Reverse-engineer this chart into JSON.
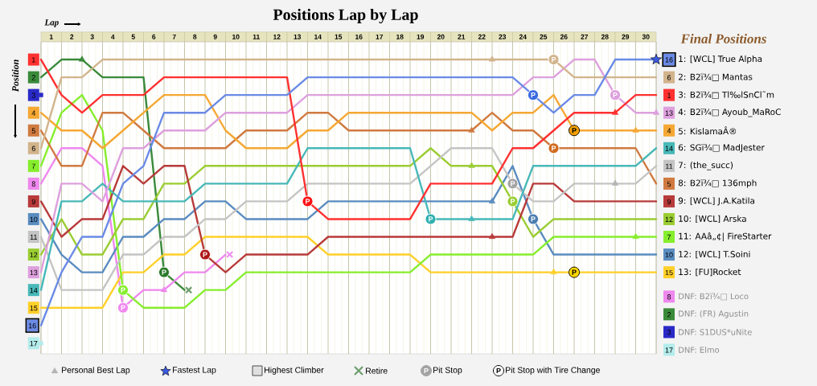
{
  "chart_data": {
    "type": "line",
    "title": "Positions Lap by Lap",
    "xlabel": "Lap",
    "ylabel": "Position",
    "legend_title": "Final Positions",
    "x": [
      0,
      1,
      2,
      3,
      4,
      5,
      6,
      7,
      8,
      9,
      10,
      11,
      12,
      13,
      14,
      15,
      16,
      17,
      18,
      19,
      20,
      21,
      22,
      23,
      24,
      25,
      26,
      27,
      28,
      29,
      30
    ],
    "xlim": [
      0,
      30
    ],
    "ylim": [
      17.6,
      0
    ],
    "xticks": [
      {
        "value": 0,
        "label": null
      },
      {
        "value": 0.5,
        "label": "1"
      },
      {
        "value": 1,
        "label": null
      },
      {
        "value": 1.5,
        "label": "2"
      },
      {
        "value": 2,
        "label": null
      },
      {
        "value": 2.5,
        "label": "3"
      },
      {
        "value": 3,
        "label": null
      },
      {
        "value": 3.5,
        "label": "4"
      },
      {
        "value": 4,
        "label": null
      },
      {
        "value": 4.5,
        "label": "5"
      },
      {
        "value": 5,
        "label": null
      },
      {
        "value": 5.5,
        "label": "6"
      },
      {
        "value": 6,
        "label": null
      },
      {
        "value": 6.5,
        "label": "7"
      },
      {
        "value": 7,
        "label": null
      },
      {
        "value": 7.5,
        "label": "8"
      },
      {
        "value": 8,
        "label": null
      },
      {
        "value": 8.5,
        "label": "9"
      },
      {
        "value": 9,
        "label": null
      },
      {
        "value": 9.5,
        "label": "10"
      },
      {
        "value": 10,
        "label": null
      },
      {
        "value": 10.5,
        "label": "11"
      },
      {
        "value": 11,
        "label": null
      },
      {
        "value": 11.5,
        "label": "12"
      },
      {
        "value": 12,
        "label": null
      },
      {
        "value": 12.5,
        "label": "13"
      },
      {
        "value": 13,
        "label": null
      },
      {
        "value": 13.5,
        "label": "14"
      },
      {
        "value": 14,
        "label": null
      },
      {
        "value": 14.5,
        "label": "15"
      },
      {
        "value": 15,
        "label": null
      },
      {
        "value": 15.5,
        "label": "16"
      },
      {
        "value": 16,
        "label": null
      },
      {
        "value": 16.5,
        "label": "17"
      },
      {
        "value": 17,
        "label": null
      },
      {
        "value": 17.5,
        "label": "18"
      },
      {
        "value": 18,
        "label": null
      },
      {
        "value": 18.5,
        "label": "19"
      },
      {
        "value": 19,
        "label": null
      },
      {
        "value": 19.5,
        "label": "20"
      },
      {
        "value": 20,
        "label": null
      },
      {
        "value": 20.5,
        "label": "21"
      },
      {
        "value": 21,
        "label": null
      },
      {
        "value": 21.5,
        "label": "22"
      },
      {
        "value": 22,
        "label": null
      },
      {
        "value": 22.5,
        "label": "23"
      },
      {
        "value": 23,
        "label": null
      },
      {
        "value": 23.5,
        "label": "24"
      },
      {
        "value": 24,
        "label": null
      },
      {
        "value": 24.5,
        "label": "25"
      },
      {
        "value": 25,
        "label": null
      },
      {
        "value": 25.5,
        "label": "26"
      },
      {
        "value": 26,
        "label": null
      },
      {
        "value": 26.5,
        "label": "27"
      },
      {
        "value": 27,
        "label": null
      },
      {
        "value": 27.5,
        "label": "28"
      },
      {
        "value": 28,
        "label": null
      },
      {
        "value": 28.5,
        "label": "29"
      },
      {
        "value": 29,
        "label": null
      },
      {
        "value": 29.5,
        "label": "30"
      },
      {
        "value": 30,
        "label": null
      }
    ],
    "yticks": [
      1,
      2,
      3,
      4,
      5,
      6,
      7,
      8,
      9,
      10,
      11,
      12,
      13,
      14,
      15,
      16,
      17
    ],
    "annotations": [
      "Highest Climber",
      "16",
      "6",
      "1",
      "13",
      "4",
      "14",
      "11",
      "5",
      "9",
      "12",
      "7",
      "10",
      "15",
      "8",
      "2",
      "3",
      "17"
    ],
    "grid": "x",
    "legend": "right",
    "marker": "none",
    "line_style": "solid",
    "series": [
      {
        "name": "1: [WCL] True Alpha",
        "color": "#6a8ae6",
        "values": [
          16,
          13,
          11,
          11,
          8,
          7,
          4,
          4,
          4,
          3,
          3,
          3,
          3,
          2,
          2,
          2,
          2,
          2,
          2,
          2,
          2,
          2,
          2,
          2,
          3,
          4,
          3,
          3,
          1,
          1,
          1
        ]
      },
      {
        "name": "2: B2ï¾□ Mantas",
        "color": "#d2b48c",
        "values": [
          6,
          2,
          2,
          1,
          1,
          1,
          1,
          1,
          1,
          1,
          1,
          1,
          1,
          1,
          1,
          1,
          1,
          1,
          1,
          1,
          1,
          1,
          1,
          1,
          1,
          1,
          2,
          2,
          2,
          2,
          2
        ]
      },
      {
        "name": "3: B2ï¾□ Tl‰lSnCl˜m",
        "color": "#ff3030",
        "values": [
          1,
          3,
          4,
          3,
          3,
          3,
          2,
          2,
          2,
          2,
          2,
          2,
          2,
          9,
          10,
          10,
          10,
          10,
          10,
          8,
          8,
          8,
          8,
          6,
          6,
          5,
          4,
          4,
          4,
          3,
          3
        ]
      },
      {
        "name": "4: B2ï¾□ Ayoub_MaRoC",
        "color": "#dda0dd",
        "values": [
          13,
          8,
          8,
          9,
          6,
          6,
          5,
          5,
          5,
          4,
          4,
          4,
          4,
          3,
          3,
          3,
          3,
          3,
          3,
          3,
          3,
          3,
          3,
          3,
          2,
          2,
          1,
          1,
          3,
          4,
          4
        ]
      },
      {
        "name": "5: KislamaÂ®",
        "color": "#f5a833",
        "values": [
          4,
          5,
          5,
          6,
          5,
          4,
          3,
          3,
          3,
          5,
          6,
          6,
          6,
          5,
          5,
          4,
          4,
          4,
          4,
          4,
          4,
          4,
          5,
          4,
          4,
          3,
          5,
          5,
          5,
          5,
          5
        ]
      },
      {
        "name": "6: SGï¾□ MadJester",
        "color": "#48b8b8",
        "values": [
          14,
          9,
          9,
          8,
          9,
          9,
          9,
          9,
          8,
          8,
          8,
          8,
          8,
          6,
          6,
          6,
          6,
          6,
          6,
          10,
          10,
          10,
          10,
          10,
          7,
          7,
          7,
          7,
          7,
          7,
          6
        ]
      },
      {
        "name": "7: (the_succ)",
        "color": "#c4c4c4",
        "values": [
          11,
          14,
          14,
          14,
          12,
          12,
          11,
          11,
          10,
          10,
          9,
          9,
          9,
          8,
          8,
          8,
          8,
          8,
          8,
          7,
          6,
          6,
          6,
          8,
          9,
          9,
          8,
          8,
          8,
          8,
          7
        ]
      },
      {
        "name": "8: B2ï¾□ 136mph",
        "color": "#d07a40",
        "values": [
          5,
          7,
          7,
          4,
          4,
          5,
          6,
          6,
          6,
          6,
          5,
          5,
          5,
          4,
          4,
          5,
          5,
          5,
          5,
          5,
          5,
          5,
          4,
          5,
          5,
          6,
          6,
          6,
          6,
          6,
          8
        ]
      },
      {
        "name": "9: [WCL] J.A.Katila",
        "color": "#b83a3a",
        "values": [
          9,
          11,
          10,
          10,
          7,
          8,
          7,
          7,
          12,
          13,
          12,
          12,
          12,
          12,
          11,
          11,
          11,
          11,
          11,
          11,
          11,
          11,
          11,
          11,
          8,
          8,
          9,
          9,
          9,
          9,
          9
        ]
      },
      {
        "name": "10: [WCL] Arska",
        "color": "#9acd32",
        "values": [
          12,
          10,
          12,
          12,
          10,
          10,
          8,
          8,
          7,
          7,
          7,
          7,
          7,
          7,
          7,
          7,
          7,
          7,
          7,
          6,
          7,
          7,
          7,
          9,
          11,
          10,
          10,
          10,
          10,
          10,
          10
        ]
      },
      {
        "name": "11: AAâ„¢| FireStarter",
        "color": "#86ee2c",
        "values": [
          7,
          4,
          3,
          5,
          14,
          15,
          15,
          15,
          14,
          14,
          13,
          13,
          13,
          13,
          13,
          13,
          13,
          13,
          13,
          12,
          12,
          12,
          12,
          12,
          12,
          11,
          11,
          11,
          11,
          11,
          11
        ]
      },
      {
        "name": "12: [WCL] T.Soini",
        "color": "#5a8cc0",
        "values": [
          10,
          12,
          13,
          13,
          11,
          11,
          10,
          10,
          9,
          9,
          10,
          10,
          10,
          10,
          9,
          9,
          9,
          9,
          9,
          9,
          9,
          9,
          9,
          7,
          10,
          12,
          12,
          12,
          12,
          12,
          12
        ]
      },
      {
        "name": "13: [FU]Rocket",
        "color": "#ffd02a",
        "values": [
          15,
          15,
          15,
          15,
          13,
          13,
          12,
          12,
          11,
          11,
          11,
          11,
          11,
          11,
          12,
          12,
          12,
          12,
          12,
          13,
          13,
          13,
          13,
          13,
          13,
          13,
          13,
          13,
          13,
          13,
          13
        ]
      },
      {
        "name": "DNF: B2ï¾□ Loco",
        "color": "#ee88ee",
        "x": [
          0,
          1,
          2,
          3,
          4,
          5,
          6,
          7,
          8,
          9
        ],
        "values": [
          8,
          6,
          6,
          7,
          15,
          14,
          14,
          13,
          13,
          12
        ]
      },
      {
        "name": "DNF: (FR) Agustin",
        "color": "#3a8a3a",
        "x": [
          0,
          1,
          2,
          3,
          4,
          5,
          6,
          7
        ],
        "values": [
          2,
          1,
          1,
          2,
          2,
          2,
          13,
          14
        ]
      },
      {
        "name": "DNF: S1DUS*uNite",
        "color": "#2a2ac8",
        "marker": "square",
        "x": [
          0
        ],
        "values": [
          3
        ]
      },
      {
        "name": "DNF: Elmo",
        "color": "#b4ecec",
        "marker": "square",
        "x": [
          0
        ],
        "values": [
          17
        ]
      },
      {
        "name": "Personal Best Lap",
        "type": "scatter",
        "marker": "triangle",
        "x": [
          28,
          2,
          22,
          21,
          29,
          22,
          21,
          22,
          21,
          29,
          25,
          28,
          30,
          6
        ],
        "values": [
          8,
          1,
          1,
          5,
          5,
          9,
          10,
          11,
          7,
          11,
          13,
          4,
          4,
          14
        ],
        "colors": [
          "#b4b4b4",
          "#3a8a3a",
          "#d2b48c",
          "#d07a40",
          "#f5a833",
          "#5a8cc0",
          "#48b8b8",
          "#b83a3a",
          "#9acd32",
          "#86ee2c",
          "#ffd02a",
          "#ff3030",
          "#dda0dd",
          "#ee88ee"
        ]
      },
      {
        "name": "Fastest Lap",
        "type": "scatter",
        "marker": "star",
        "x": [
          30
        ],
        "values": [
          1
        ],
        "colors": [
          "#3a5ae0"
        ]
      },
      {
        "name": "Retire",
        "type": "scatter",
        "marker": "cross",
        "x": [
          7.2,
          9.2
        ],
        "values": [
          14,
          12
        ],
        "colors": [
          "#6e9e6e",
          "#f090f0"
        ]
      },
      {
        "name": "Pit Stop",
        "type": "scatter",
        "marker": "circle",
        "color": "#ffffff",
        "x": [
          23,
          4,
          4,
          6,
          8,
          13,
          19,
          23,
          24,
          24,
          25,
          25,
          28
        ],
        "values": [
          8,
          14,
          15,
          13,
          12,
          9,
          10,
          9,
          3,
          10,
          1,
          6,
          3
        ],
        "colors": [
          "#a4a4a4",
          "#86ee2c",
          "#ee88ee",
          "#2a7a2a",
          "#b01818",
          "#ff1010",
          "#30b0b0",
          "#9acd32",
          "#3a6ae0",
          "#4a7cb0",
          "#d2b48c",
          "#d06a20",
          "#dda0dd"
        ],
        "value_labels": [
          "P",
          "P",
          "P",
          "P",
          "P",
          "P",
          "P",
          "P",
          "P",
          "P",
          "P",
          "P",
          "P"
        ]
      },
      {
        "name": "Pit Stop with Tire Change",
        "type": "scatter",
        "marker": "circle",
        "color": "#000000",
        "x": [
          26,
          26
        ],
        "values": [
          5,
          13
        ],
        "colors": [
          "#f5a000",
          "#ffd700"
        ],
        "value_labels": [
          "P",
          "P"
        ]
      }
    ]
  }
}
